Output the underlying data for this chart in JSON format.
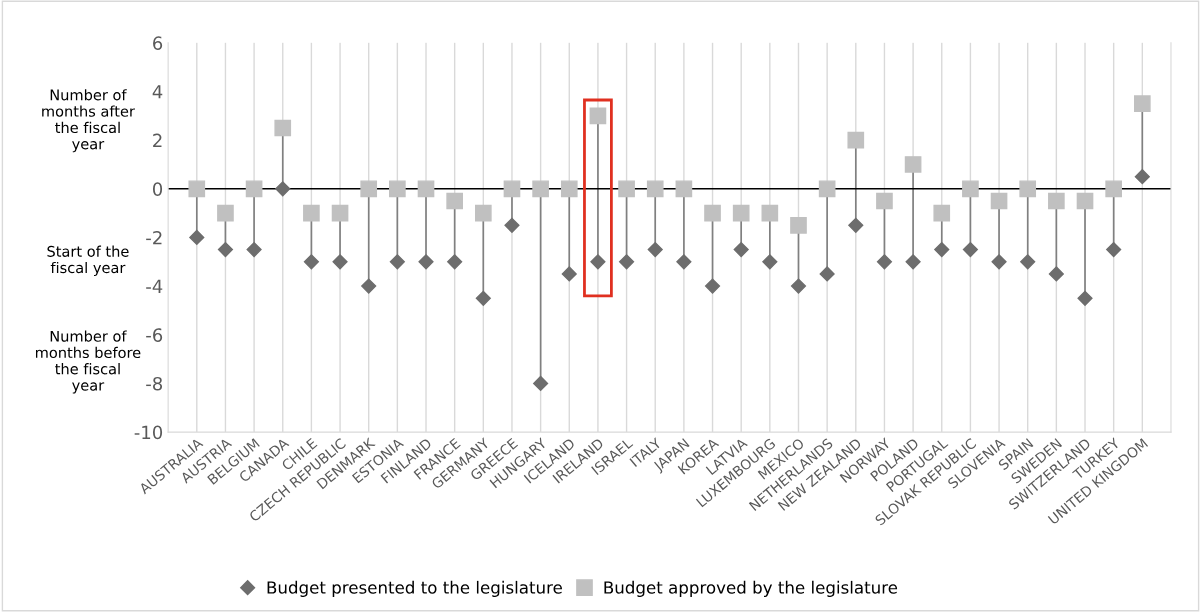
{
  "chart_data": {
    "type": "scatter",
    "categories": [
      "AUSTRALIA",
      "AUSTRIA",
      "BELGIUM",
      "CANADA",
      "CHILE",
      "CZECH REPUBLIC",
      "DENMARK",
      "ESTONIA",
      "FINLAND",
      "FRANCE",
      "GERMANY",
      "GREECE",
      "HUNGARY",
      "ICELAND",
      "IRELAND",
      "ISRAEL",
      "ITALY",
      "JAPAN",
      "KOREA",
      "LATVIA",
      "LUXEMBOURG",
      "MEXICO",
      "NETHERLANDS",
      "NEW ZEALAND",
      "NORWAY",
      "POLAND",
      "PORTUGAL",
      "SLOVAK REPUBLIC",
      "SLOVENIA",
      "SPAIN",
      "SWEDEN",
      "SWITZERLAND",
      "TURKEY",
      "UNITED KINGDOM"
    ],
    "series": [
      {
        "name": "Budget presented to the legislature",
        "color": "#6d6d6d",
        "marker": "diamond",
        "values": [
          -2,
          -2.5,
          -2.5,
          0,
          -3,
          -3,
          -4,
          -3,
          -3,
          -3,
          -4.5,
          -1.5,
          -8,
          -3.5,
          -3,
          -3,
          -2.5,
          -3,
          -4,
          -2.5,
          -3,
          -4,
          -3.5,
          -1.5,
          -3,
          -3,
          -2.5,
          -2.5,
          -3,
          -3,
          -3.5,
          -4.5,
          -2.5,
          0.5
        ]
      },
      {
        "name": "Budget approved by the legislature",
        "color": "#c0c0c0",
        "marker": "square",
        "values": [
          0,
          -1,
          0,
          2.5,
          -1,
          -1,
          0,
          0,
          0,
          -0.5,
          -1,
          0,
          0,
          0,
          3,
          0,
          0,
          0,
          -1,
          -1,
          -1,
          -1.5,
          0,
          2,
          -0.5,
          1,
          -1,
          0,
          -0.5,
          0,
          -0.5,
          -0.5,
          0,
          3.5
        ]
      }
    ],
    "ylim": [
      -10,
      6
    ],
    "yticks": [
      -10,
      -8,
      -6,
      -4,
      -2,
      0,
      2,
      4,
      6
    ],
    "grid": "x",
    "legend": "bottom",
    "ref_lines": [
      {
        "axis": "y",
        "value": 0,
        "color": "#000000"
      }
    ],
    "annotations": [
      "Number of months after the fiscal year",
      "Start of the fiscal year",
      "Number of months before the fiscal year"
    ]
  }
}
